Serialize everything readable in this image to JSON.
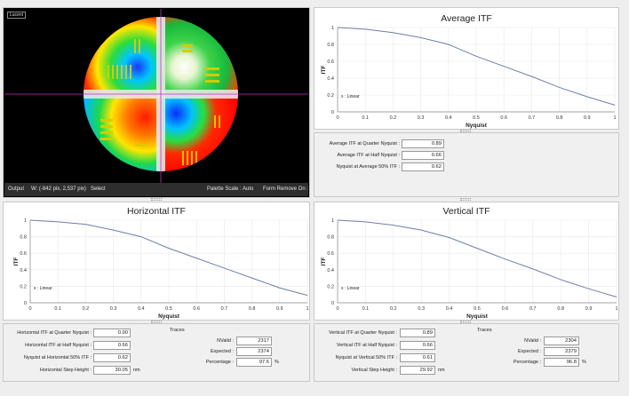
{
  "output": {
    "logo_text": "Lucent",
    "status_label": "Output",
    "coords": "W: (-842 pix, 2,537 pix)",
    "select_label": "Select",
    "palette_label": "Palette Scale : Auto",
    "form_remove": "Form Remove On : Tilt"
  },
  "average_itf": {
    "title": "Average ITF",
    "legend": "x : Linear",
    "xlabel": "Nyquist",
    "ylabel": "ITF",
    "metrics": [
      {
        "label": "Average ITF at Quarter Nyquist :",
        "value": "0.89"
      },
      {
        "label": "Average ITF at Half Nyquist :",
        "value": "0.66"
      },
      {
        "label": "Nyquist at Average  50% ITF :",
        "value": "0.62"
      }
    ]
  },
  "horizontal_itf": {
    "title": "Horizontal ITF",
    "legend": "x : Linear",
    "xlabel": "Nyquist",
    "ylabel": "ITF",
    "metrics": [
      {
        "label": "Horizontal ITF at Quarter Nyquist :",
        "value": "0.90"
      },
      {
        "label": "Horizontal ITF at Half Nyquist :",
        "value": "0.66"
      },
      {
        "label": "Nyquist at Horizontal  50% ITF :",
        "value": "0.62"
      },
      {
        "label": "Horizontal Step Height :",
        "value": "30.05",
        "unit": "nm"
      }
    ],
    "traces": {
      "title": "Traces",
      "rows": [
        {
          "label": "NValid :",
          "value": "2317"
        },
        {
          "label": "Expected :",
          "value": "2374"
        },
        {
          "label": "Percentage :",
          "value": "97.6",
          "unit": "%"
        }
      ]
    }
  },
  "vertical_itf": {
    "title": "Vertical ITF",
    "legend": "x : Linear",
    "xlabel": "Nyquist",
    "ylabel": "ITF",
    "metrics": [
      {
        "label": "Vertical ITF at Quarter Nyquist :",
        "value": "0.89"
      },
      {
        "label": "Vertical ITF at Half Nyquist :",
        "value": "0.66"
      },
      {
        "label": "Nyquist at Vertical  50% ITF :",
        "value": "0.61"
      },
      {
        "label": "Vertical Step Height :",
        "value": "29.92",
        "unit": "nm"
      }
    ],
    "traces": {
      "title": "Traces",
      "rows": [
        {
          "label": "NValid :",
          "value": "2304"
        },
        {
          "label": "Expected :",
          "value": "2379"
        },
        {
          "label": "Percentage :",
          "value": "96.8",
          "unit": "%"
        }
      ]
    }
  },
  "chart_data": [
    {
      "type": "line",
      "title": "Average ITF",
      "xlabel": "Nyquist",
      "ylabel": "ITF",
      "xlim": [
        0,
        1
      ],
      "ylim": [
        0,
        1
      ],
      "x_ticks": [
        "0",
        "0.1",
        "0.2",
        "0.3",
        "0.4",
        "0.5",
        "0.6",
        "0.7",
        "0.8",
        "0.9",
        "1"
      ],
      "y_ticks": [
        "0",
        "0.2",
        "0.4",
        "0.6",
        "0.8",
        "1"
      ],
      "series": [
        {
          "x": [
            0,
            0.1,
            0.2,
            0.3,
            0.4,
            0.5,
            0.6,
            0.7,
            0.8,
            0.9,
            1.0
          ],
          "y": [
            1.0,
            0.98,
            0.94,
            0.88,
            0.8,
            0.66,
            0.54,
            0.42,
            0.29,
            0.18,
            0.08
          ]
        }
      ]
    },
    {
      "type": "line",
      "title": "Horizontal ITF",
      "xlabel": "Nyquist",
      "ylabel": "ITF",
      "xlim": [
        0,
        1
      ],
      "ylim": [
        0,
        1
      ],
      "x_ticks": [
        "0",
        "0.1",
        "0.2",
        "0.3",
        "0.4",
        "0.5",
        "0.6",
        "0.7",
        "0.8",
        "0.9",
        "1"
      ],
      "y_ticks": [
        "0",
        "0.2",
        "0.4",
        "0.6",
        "0.8",
        "1"
      ],
      "series": [
        {
          "x": [
            0,
            0.1,
            0.2,
            0.3,
            0.4,
            0.5,
            0.6,
            0.7,
            0.8,
            0.9,
            1.0
          ],
          "y": [
            1.0,
            0.98,
            0.95,
            0.88,
            0.8,
            0.66,
            0.54,
            0.42,
            0.3,
            0.18,
            0.09
          ]
        }
      ]
    },
    {
      "type": "line",
      "title": "Vertical ITF",
      "xlabel": "Nyquist",
      "ylabel": "ITF",
      "xlim": [
        0,
        1
      ],
      "ylim": [
        0,
        1
      ],
      "x_ticks": [
        "0",
        "0.1",
        "0.2",
        "0.3",
        "0.4",
        "0.5",
        "0.6",
        "0.7",
        "0.8",
        "0.9",
        "1"
      ],
      "y_ticks": [
        "0",
        "0.2",
        "0.4",
        "0.6",
        "0.8",
        "1"
      ],
      "series": [
        {
          "x": [
            0,
            0.1,
            0.2,
            0.3,
            0.4,
            0.5,
            0.6,
            0.7,
            0.8,
            0.9,
            1.0
          ],
          "y": [
            1.0,
            0.98,
            0.94,
            0.88,
            0.79,
            0.66,
            0.53,
            0.41,
            0.28,
            0.17,
            0.07
          ]
        }
      ]
    }
  ]
}
